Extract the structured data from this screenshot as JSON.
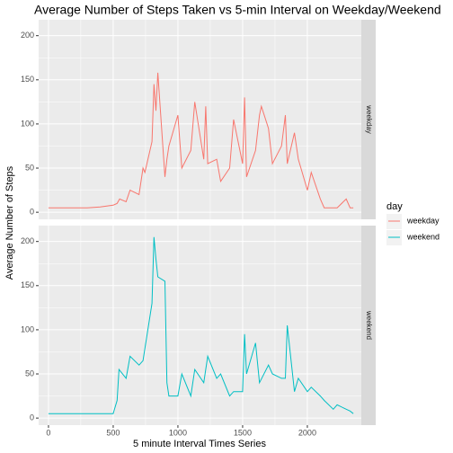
{
  "chart_data": {
    "type": "line",
    "title": "Average Number of Steps Taken vs 5-min Interval on Weekday/Weekend",
    "xlabel": "5 minute Interval Times Series",
    "ylabel": "Average Number of Steps",
    "legend_title": "day",
    "xlim": [
      -76,
      2417
    ],
    "xticks": [
      0,
      500,
      1000,
      1500,
      2000
    ],
    "ylim": [
      -8,
      218
    ],
    "yticks": [
      0,
      50,
      100,
      150,
      200
    ],
    "grid": true,
    "series": [
      {
        "name": "weekday",
        "color": "#F8766D",
        "x": [
          0,
          100,
          200,
          300,
          400,
          500,
          530,
          550,
          600,
          630,
          700,
          730,
          745,
          800,
          815,
          830,
          845,
          900,
          915,
          930,
          1000,
          1030,
          1100,
          1130,
          1200,
          1215,
          1230,
          1300,
          1330,
          1400,
          1430,
          1500,
          1515,
          1530,
          1600,
          1630,
          1645,
          1700,
          1730,
          1800,
          1830,
          1845,
          1900,
          1930,
          2000,
          2030,
          2100,
          2130,
          2200,
          2230,
          2300,
          2330,
          2355
        ],
        "values": [
          5,
          5,
          5,
          5,
          6,
          8,
          10,
          15,
          12,
          25,
          20,
          50,
          45,
          80,
          145,
          115,
          158,
          40,
          60,
          75,
          110,
          50,
          70,
          125,
          60,
          120,
          55,
          60,
          35,
          50,
          105,
          55,
          130,
          40,
          70,
          110,
          120,
          95,
          55,
          75,
          110,
          55,
          90,
          60,
          25,
          45,
          15,
          5,
          5,
          5,
          15,
          5,
          5
        ]
      },
      {
        "name": "weekend",
        "color": "#00BFC4",
        "x": [
          0,
          100,
          200,
          300,
          400,
          500,
          530,
          545,
          600,
          630,
          700,
          730,
          800,
          815,
          830,
          845,
          900,
          915,
          930,
          1000,
          1030,
          1100,
          1130,
          1200,
          1230,
          1300,
          1330,
          1400,
          1430,
          1500,
          1515,
          1530,
          1600,
          1630,
          1700,
          1730,
          1800,
          1830,
          1845,
          1900,
          1930,
          2000,
          2030,
          2100,
          2130,
          2200,
          2230,
          2300,
          2330,
          2355
        ],
        "values": [
          5,
          5,
          5,
          5,
          5,
          5,
          20,
          55,
          45,
          70,
          60,
          65,
          130,
          205,
          180,
          160,
          155,
          40,
          25,
          25,
          50,
          25,
          55,
          40,
          70,
          45,
          50,
          25,
          30,
          30,
          95,
          50,
          85,
          40,
          60,
          50,
          45,
          45,
          105,
          30,
          45,
          30,
          35,
          25,
          20,
          10,
          15,
          10,
          8,
          5
        ]
      }
    ]
  }
}
